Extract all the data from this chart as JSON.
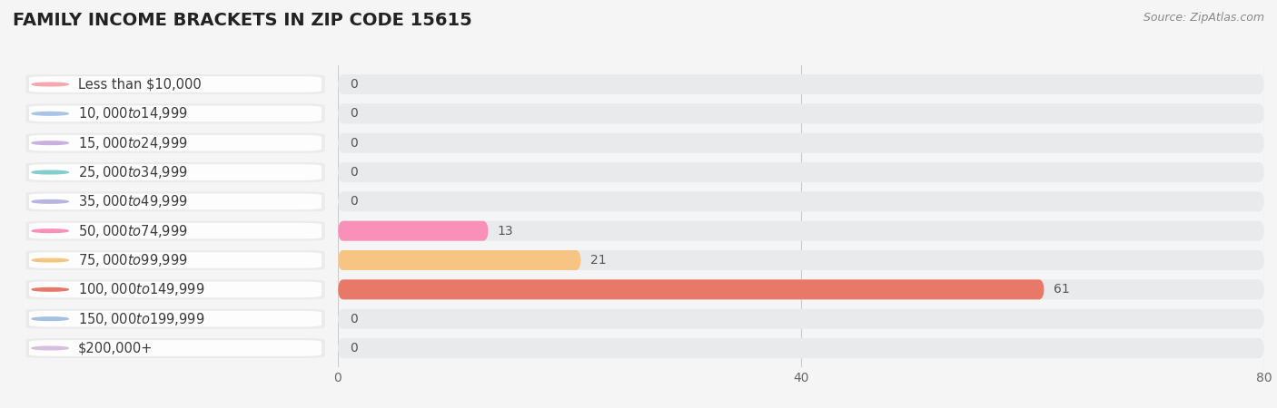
{
  "title": "FAMILY INCOME BRACKETS IN ZIP CODE 15615",
  "source": "Source: ZipAtlas.com",
  "categories": [
    "Less than $10,000",
    "$10,000 to $14,999",
    "$15,000 to $24,999",
    "$25,000 to $34,999",
    "$35,000 to $49,999",
    "$50,000 to $74,999",
    "$75,000 to $99,999",
    "$100,000 to $149,999",
    "$150,000 to $199,999",
    "$200,000+"
  ],
  "values": [
    0,
    0,
    0,
    0,
    0,
    13,
    21,
    61,
    0,
    0
  ],
  "bar_colors": [
    "#f5a8ae",
    "#aac4e8",
    "#c8b0e0",
    "#82cece",
    "#b8b4e2",
    "#f890b8",
    "#f8c484",
    "#e87868",
    "#a4c0e2",
    "#d8bedd"
  ],
  "background_color": "#f5f5f5",
  "xlim": [
    0,
    80
  ],
  "xticks": [
    0,
    40,
    80
  ],
  "title_fontsize": 14,
  "label_fontsize": 10.5,
  "value_fontsize": 10
}
